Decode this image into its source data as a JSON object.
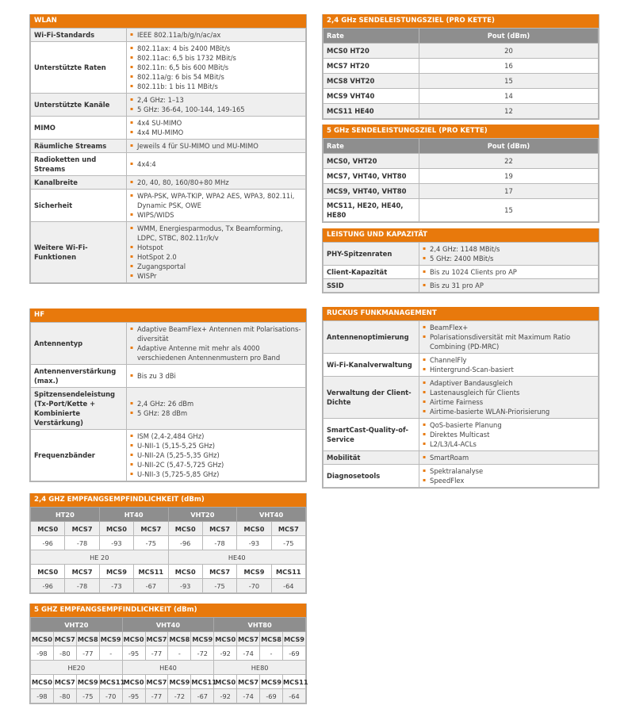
{
  "colors": {
    "accent": "#e8790c",
    "header_gray": "#8e8e8e",
    "row_gray": "#efefef"
  },
  "specs": [
    {
      "title": "WLAN",
      "rows": [
        {
          "label": "Wi-Fi-Standards",
          "items": [
            "IEEE 802.11a/b/g/n/ac/ax"
          ]
        },
        {
          "label": "Unterstützte Raten",
          "items": [
            "802.11ax: 4 bis 2400 MBit/s",
            "802.11ac: 6,5 bis 1732 MBit/s",
            "802.11n: 6,5 bis 600 MBit/s",
            "802.11a/g: 6 bis 54 MBit/s",
            "802.11b: 1 bis 11 MBit/s"
          ]
        },
        {
          "label": "Unterstützte Kanäle",
          "items": [
            "2,4 GHz: 1–13",
            "5 GHz: 36-64, 100-144, 149-165"
          ]
        },
        {
          "label": "MIMO",
          "items": [
            "4x4 SU-MIMO",
            "4x4 MU-MIMO"
          ]
        },
        {
          "label": "Räumliche Streams",
          "items": [
            "Jeweils 4 für SU-MIMO und MU-MIMO"
          ]
        },
        {
          "label": "Radioketten und Streams",
          "items": [
            "4x4:4"
          ]
        },
        {
          "label": "Kanalbreite",
          "items": [
            "20, 40, 80, 160/80+80 MHz"
          ]
        },
        {
          "label": "Sicherheit",
          "items": [
            "WPA-PSK, WPA-TKIP, WPA2 AES, WPA3, 802.11i, Dynamic PSK, OWE",
            "WIPS/WIDS"
          ]
        },
        {
          "label": "Weitere Wi-Fi-Funktionen",
          "items": [
            "WMM, Energiesparmodus, Tx Beamforming, LDPC, STBC, 802.11r/k/v",
            "Hotspot",
            "HotSpot 2.0",
            "Zugangsportal",
            "WISPr"
          ]
        }
      ]
    },
    {
      "title": "HF",
      "rows": [
        {
          "label": "Antennentyp",
          "items": [
            "Adaptive BeamFlex+ Antennen mit Polarisations-diversität",
            "Adaptive Antenne mit mehr als 4000 verschiedenen Antennenmustern pro Band"
          ]
        },
        {
          "label": "Antennenverstärkung (max.)",
          "items": [
            "Bis zu 3 dBi"
          ]
        },
        {
          "label": "Spitzensendeleistung (Tx-Port/Kette + Kombinierte Verstärkung)",
          "items": [
            "2,4 GHz: 26 dBm",
            "5 GHz: 28 dBm"
          ]
        },
        {
          "label": "Frequenzbänder",
          "items": [
            "ISM (2,4-2,484 GHz)",
            "U-NII-1 (5,15-5,25 GHz)",
            "U-NII-2A (5,25-5,35 GHz)",
            "U-NII-2C (5,47-5,725 GHz)",
            "U-NII-3 (5,725-5,85 GHz)"
          ]
        }
      ]
    },
    {
      "title": "LEISTUNG UND KAPAZITÄT",
      "rows": [
        {
          "label": "PHY-Spitzenraten",
          "items": [
            "2,4 GHz: 1148 MBit/s",
            "5 GHz: 2400 MBit/s"
          ]
        },
        {
          "label": "Client-Kapazität",
          "items": [
            "Bis zu 1024 Clients pro AP"
          ]
        },
        {
          "label": "SSID",
          "items": [
            "Bis zu 31 pro AP"
          ]
        }
      ]
    },
    {
      "title": "RUCKUS FUNKMANAGEMENT",
      "rows": [
        {
          "label": "Antennenoptimierung",
          "items": [
            "BeamFlex+",
            "Polarisationsdiversität mit Maximum Ratio Combining (PD-MRC)"
          ]
        },
        {
          "label": "Wi-Fi-Kanalverwaltung",
          "items": [
            "ChannelFly",
            "Hintergrund-Scan-basiert"
          ]
        },
        {
          "label": "Verwaltung der Client-Dichte",
          "items": [
            "Adaptiver Bandausgleich",
            "Lastenausgleich für Clients",
            "Airtime Fairness",
            "Airtime-basierte WLAN-Priorisierung"
          ]
        },
        {
          "label": "SmartCast-Quality-of-Service",
          "items": [
            "QoS-basierte Planung",
            "Direktes Multicast",
            "L2/L3/L4-ACLs"
          ]
        },
        {
          "label": "Mobilität",
          "items": [
            "SmartRoam"
          ]
        },
        {
          "label": "Diagnosetools",
          "items": [
            "Spektralanalyse",
            "SpeedFlex"
          ]
        }
      ]
    }
  ],
  "pout": [
    {
      "title": "2,4 GHz SENDELEISTUNGSZIEL (PRO KETTE)",
      "col_rate": "Rate",
      "col_pout": "Pout (dBm)",
      "rows": [
        [
          "MCS0 HT20",
          "20"
        ],
        [
          "MCS7 HT20",
          "16"
        ],
        [
          "MCS8 VHT20",
          "15"
        ],
        [
          "MCS9 VHT40",
          "14"
        ],
        [
          "MCS11 HE40",
          "12"
        ]
      ]
    },
    {
      "title": "5 GHz SENDELEISTUNGSZIEL (PRO KETTE)",
      "col_rate": "Rate",
      "col_pout": "Pout (dBm)",
      "rows": [
        [
          "MCS0, VHT20",
          "22"
        ],
        [
          "MCS7, VHT40, VHT80",
          "19"
        ],
        [
          "MCS9, VHT40, VHT80",
          "17"
        ],
        [
          "MCS11, HE20, HE40, HE80",
          "15"
        ]
      ]
    }
  ],
  "sens": [
    {
      "title": "2,4 GHZ EMPFANGSEMPFINDLICHKEIT (dBm)",
      "groups1": [
        "HT20",
        "HT40",
        "VHT20",
        "VHT40"
      ],
      "mcs1": [
        "MCS0",
        "MCS7",
        "MCS0",
        "MCS7",
        "MCS0",
        "MCS7",
        "MCS0",
        "MCS7"
      ],
      "vals1": [
        "-96",
        "-78",
        "-93",
        "-75",
        "-96",
        "-78",
        "-93",
        "-75"
      ],
      "groups2": [
        "HE 20",
        "HE40"
      ],
      "mcs2": [
        "MCS0",
        "MCS7",
        "MCS9",
        "MCS11",
        "MCS0",
        "MCS7",
        "MCS9",
        "MCS11"
      ],
      "vals2": [
        "-96",
        "-78",
        "-73",
        "-67",
        "-93",
        "-75",
        "-70",
        "-64"
      ]
    },
    {
      "title": "5 GHZ EMPFANGSEMPFINDLICHKEIT (dBm)",
      "groups1": [
        "VHT20",
        "VHT40",
        "VHT80"
      ],
      "mcs1": [
        "MCS0",
        "MCS7",
        "MCS8",
        "MCS9",
        "MCS0",
        "MCS7",
        "MCS8",
        "MCS9",
        "MCS0",
        "MCS7",
        "MCS8",
        "MCS9"
      ],
      "vals1": [
        "-98",
        "-80",
        "-77",
        "-",
        "-95",
        "-77",
        "-",
        "-72",
        "-92",
        "-74",
        "-",
        "-69"
      ],
      "groups2": [
        "HE20",
        "HE40",
        "HE80"
      ],
      "mcs2": [
        "MCS0",
        "MCS7",
        "MCS9",
        "MCS11",
        "MCS0",
        "MCS7",
        "MCS9",
        "MCS11",
        "MCS0",
        "MCS7",
        "MCS9",
        "MCS11"
      ],
      "vals2": [
        "-98",
        "-80",
        "-75",
        "-70",
        "-95",
        "-77",
        "-72",
        "-67",
        "-92",
        "-74",
        "-69",
        "-64"
      ]
    }
  ]
}
